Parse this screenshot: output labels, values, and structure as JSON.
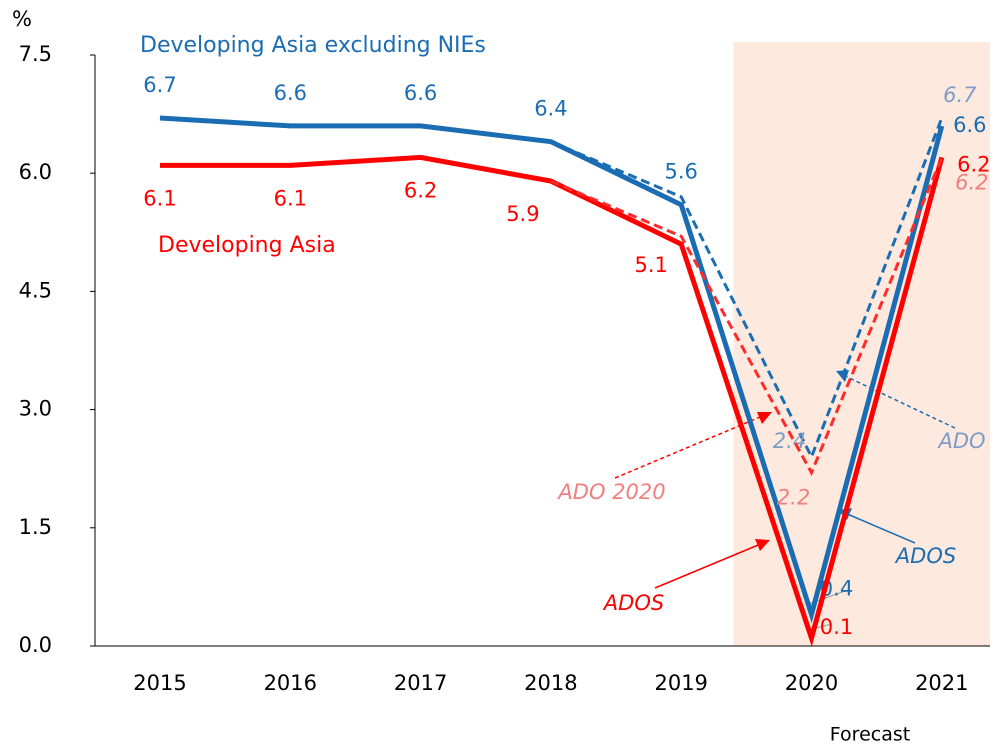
{
  "chart_data": {
    "type": "line",
    "title": "Developing Asia excluding NIEs",
    "y_unit": "%",
    "forecast_label": "Forecast",
    "forecast_from": "2020",
    "categories": [
      "2015",
      "2016",
      "2017",
      "2018",
      "2019",
      "2020",
      "2021"
    ],
    "ylim": [
      0,
      7.5
    ],
    "yticks": [
      {
        "value": 0,
        "label": "0.0"
      },
      1.5,
      {
        "value": 3,
        "label": "3.0"
      },
      4.5,
      {
        "value": 6,
        "label": "6.0"
      },
      7.5
    ],
    "series": [
      {
        "name": "Developing Asia excluding NIEs",
        "color": "#1b6db3",
        "style": "solid",
        "values": [
          6.7,
          6.6,
          6.6,
          6.4,
          5.6,
          0.4,
          6.6
        ]
      },
      {
        "name": "Developing Asia",
        "color": "#ff0000",
        "style": "solid",
        "values": [
          6.1,
          6.1,
          6.2,
          5.9,
          5.1,
          0.1,
          6.2
        ]
      },
      {
        "color": "#1b6db3",
        "label_color": "#7f9cc8",
        "style": "dashed",
        "values": [
          null,
          null,
          null,
          6.4,
          5.7,
          2.4,
          6.7
        ],
        "value_labels": [
          null,
          null,
          null,
          null,
          null,
          "2.4",
          "6.7"
        ]
      },
      {
        "color": "#ff2a2a",
        "label_color": "#f08080",
        "style": "dashed",
        "values": [
          null,
          null,
          null,
          5.9,
          5.2,
          2.2,
          6.2
        ],
        "value_labels": [
          null,
          null,
          null,
          null,
          null,
          "2.2",
          "6.2"
        ]
      }
    ],
    "annotations": [
      {
        "text": "ADO 2020",
        "color": "#f08080"
      },
      {
        "text": "ADO",
        "color": "#7f9cc8"
      },
      {
        "text": "ADOS",
        "color": "#1b6db3"
      },
      {
        "text": "ADOS",
        "color": "#ff0000"
      }
    ]
  }
}
